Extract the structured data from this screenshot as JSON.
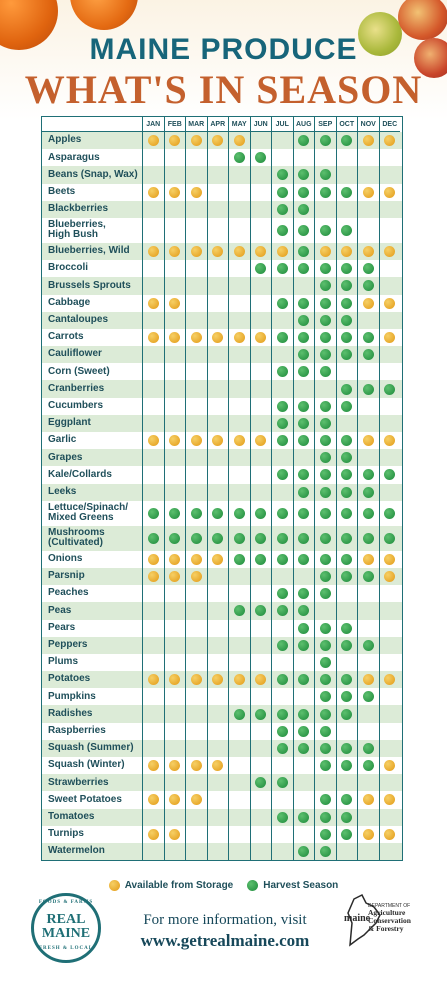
{
  "title_line1": "MAINE PRODUCE",
  "title_line2": "WHAT'S IN SEASON",
  "months": [
    "JAN",
    "FEB",
    "MAR",
    "APR",
    "MAY",
    "JUN",
    "JUL",
    "AUG",
    "SEP",
    "OCT",
    "NOV",
    "DEC"
  ],
  "produce": [
    {
      "name": [
        "Apples"
      ],
      "status": "SSSSS--HHHSS"
    },
    {
      "name": [
        "Asparagus"
      ],
      "status": "----HH------"
    },
    {
      "name": [
        "Beans (Snap, Wax)"
      ],
      "status": "------HHH---"
    },
    {
      "name": [
        "Beets"
      ],
      "status": "SSS---HHHHSS"
    },
    {
      "name": [
        "Blackberries"
      ],
      "status": "------HH----"
    },
    {
      "name": [
        "Blueberries,",
        "High Bush"
      ],
      "status": "------HHHH--"
    },
    {
      "name": [
        "Blueberries, Wild"
      ],
      "status": "SSSSSSSHSSSS"
    },
    {
      "name": [
        "Broccoli"
      ],
      "status": "-----HHHHHH-"
    },
    {
      "name": [
        "Brussels Sprouts"
      ],
      "status": "--------HHH-"
    },
    {
      "name": [
        "Cabbage"
      ],
      "status": "SS----HHHHSS"
    },
    {
      "name": [
        "Cantaloupes"
      ],
      "status": "-------HHH--"
    },
    {
      "name": [
        "Carrots"
      ],
      "status": "SSSSSSHHHHHS"
    },
    {
      "name": [
        "Cauliflower"
      ],
      "status": "-------HHHH-"
    },
    {
      "name": [
        "Corn (Sweet)"
      ],
      "status": "------HHH---"
    },
    {
      "name": [
        "Cranberries"
      ],
      "status": "---------HHH"
    },
    {
      "name": [
        "Cucumbers"
      ],
      "status": "------HHHH--"
    },
    {
      "name": [
        "Eggplant"
      ],
      "status": "------HHH---"
    },
    {
      "name": [
        "Garlic"
      ],
      "status": "SSSSSSHHHHSS"
    },
    {
      "name": [
        "Grapes"
      ],
      "status": "--------HH--"
    },
    {
      "name": [
        "Kale/Collards"
      ],
      "status": "------HHHHHH"
    },
    {
      "name": [
        "Leeks"
      ],
      "status": "-------HHHH-"
    },
    {
      "name": [
        "Lettuce/Spinach/",
        "Mixed Greens"
      ],
      "status": "HHHHHHHHHHHH"
    },
    {
      "name": [
        "Mushrooms",
        "(Cultivated)"
      ],
      "status": "HHHHHHHHHHHH"
    },
    {
      "name": [
        "Onions"
      ],
      "status": "SSSSHHHHHHSS"
    },
    {
      "name": [
        "Parsnip"
      ],
      "status": "SSS-----HHHS"
    },
    {
      "name": [
        "Peaches"
      ],
      "status": "------HHH---"
    },
    {
      "name": [
        "Peas"
      ],
      "status": "----HHHH----"
    },
    {
      "name": [
        "Pears"
      ],
      "status": "-------HHH--"
    },
    {
      "name": [
        "Peppers"
      ],
      "status": "------HHHHH-"
    },
    {
      "name": [
        "Plums"
      ],
      "status": "--------H---"
    },
    {
      "name": [
        "Potatoes"
      ],
      "status": "SSSSSSHHHHSS"
    },
    {
      "name": [
        "Pumpkins"
      ],
      "status": "--------HHH-"
    },
    {
      "name": [
        "Radishes"
      ],
      "status": "----HHHHHH--"
    },
    {
      "name": [
        "Raspberries"
      ],
      "status": "------HHH---"
    },
    {
      "name": [
        "Squash (Summer)"
      ],
      "status": "------HHHHH-"
    },
    {
      "name": [
        "Squash (Winter)"
      ],
      "status": "SSSS----HHHS"
    },
    {
      "name": [
        "Strawberries"
      ],
      "status": "-----HH-----"
    },
    {
      "name": [
        "Sweet Potatoes"
      ],
      "status": "SSS-----HHSS"
    },
    {
      "name": [
        "Tomatoes"
      ],
      "status": "------HHHH--"
    },
    {
      "name": [
        "Turnips"
      ],
      "status": "SS------HHSS"
    },
    {
      "name": [
        "Watermelon"
      ],
      "status": "-------HH---"
    }
  ],
  "legend": {
    "storage": "Available from Storage",
    "harvest": "Harvest Season"
  },
  "colors": {
    "storage": "#e9a524",
    "harvest": "#2c9a48",
    "title_teal": "#17657a",
    "title_orange": "#c4602d",
    "stripe": "#dcebd7"
  },
  "footer": {
    "line1": "For more information, visit",
    "line2": "www.getrealmaine.com"
  },
  "badge": {
    "top": "FOODS & FARMS",
    "real": "REAL",
    "maine": "MAINE",
    "bottom": "FRESH & LOCAL"
  },
  "dept": {
    "maine": "maine",
    "small": "DEPARTMENT OF",
    "line1": "Agriculture",
    "line2": "Conservation",
    "line3": "& Forestry"
  }
}
